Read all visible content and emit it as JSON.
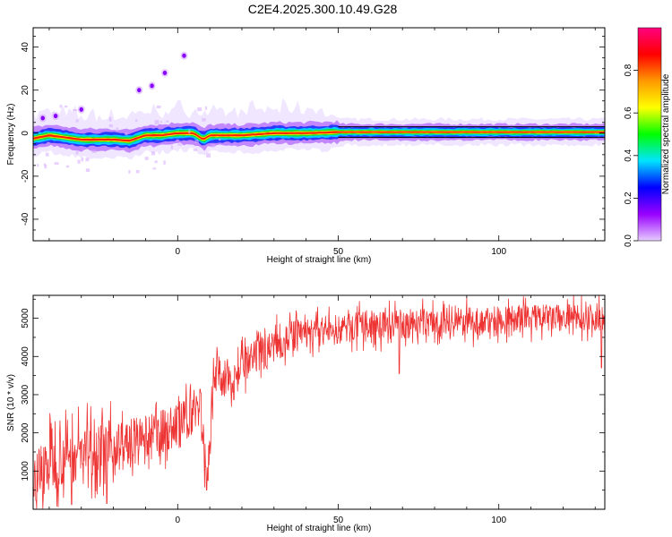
{
  "page": {
    "title": "C2E4.2025.300.10.49.G28"
  },
  "chart_data": [
    {
      "type": "heatmap",
      "title": "C2E4.2025.300.10.49.G28",
      "xlabel": "Height of straight line (km)",
      "ylabel": "Frequency (Hz)",
      "xlim": [
        -45,
        133
      ],
      "ylim": [
        -50,
        49
      ],
      "x_ticks": [
        0,
        50,
        100
      ],
      "y_ticks": [
        -40,
        -20,
        0,
        20,
        40
      ],
      "grid": false,
      "colorbar": {
        "label": "Normalized spectral amplitude",
        "range": [
          0,
          1
        ],
        "ticks": [
          0.0,
          0.2,
          0.4,
          0.6,
          0.8
        ],
        "colors": [
          "#e6ccff",
          "#9900ff",
          "#0000ff",
          "#00e5ff",
          "#00ff00",
          "#ffff00",
          "#ff9900",
          "#ff0000",
          "#ff0080"
        ]
      },
      "ridge": {
        "x": [
          -45,
          -40,
          -35,
          -30,
          -25,
          -20,
          -15,
          -10,
          -5,
          0,
          5,
          8,
          10,
          15,
          20,
          30,
          40,
          50,
          70,
          90,
          110,
          133
        ],
        "y": [
          -2.5,
          -1,
          -2,
          -3,
          -3,
          -3,
          -3.5,
          -1,
          -1,
          0,
          0,
          -3,
          -1,
          -1,
          -1,
          0,
          0,
          0.5,
          0.5,
          0.5,
          0.5,
          0.5
        ]
      },
      "outlier_points": [
        {
          "x": -42,
          "y": 7
        },
        {
          "x": -38,
          "y": 8
        },
        {
          "x": -30,
          "y": 11
        },
        {
          "x": -12,
          "y": 20
        },
        {
          "x": -8,
          "y": 22
        },
        {
          "x": -4,
          "y": 28
        },
        {
          "x": 2,
          "y": 36
        }
      ]
    },
    {
      "type": "line",
      "xlabel": "Height of straight line (km)",
      "ylabel": "SNR (10 * v/v)",
      "xlim": [
        -45,
        133
      ],
      "ylim": [
        0,
        5600
      ],
      "x_ticks": [
        0,
        50,
        100
      ],
      "y_ticks": [
        1000,
        2000,
        3000,
        4000,
        5000
      ],
      "grid": false,
      "series": [
        {
          "color": "#ee3333",
          "trend": {
            "x": [
              -45,
              -40,
              -35,
              -30,
              -25,
              -20,
              -15,
              -10,
              -5,
              0,
              5,
              7,
              8,
              9,
              10,
              11,
              12,
              15,
              20,
              25,
              30,
              35,
              40,
              50,
              60,
              70,
              80,
              90,
              100,
              110,
              120,
              133
            ],
            "y": [
              800,
              1200,
              1400,
              1500,
              1600,
              1600,
              1700,
              1800,
              2000,
              2200,
              2500,
              3000,
              1600,
              900,
              1500,
              3500,
              3600,
              3400,
              3700,
              4000,
              4300,
              4500,
              4600,
              4700,
              4800,
              4850,
              4900,
              4900,
              4950,
              5000,
              5000,
              5050
            ]
          },
          "spread": {
            "x": [
              -45,
              -20,
              0,
              20,
              40,
              133
            ],
            "y": [
              1000,
              900,
              700,
              600,
              500,
              450
            ]
          },
          "dips": [
            {
              "x": -33,
              "y": 120
            },
            {
              "x": -22,
              "y": 150
            },
            {
              "x": 9,
              "y": 500
            },
            {
              "x": 69,
              "y": 3550
            },
            {
              "x": 132,
              "y": 3700
            }
          ]
        }
      ]
    }
  ]
}
